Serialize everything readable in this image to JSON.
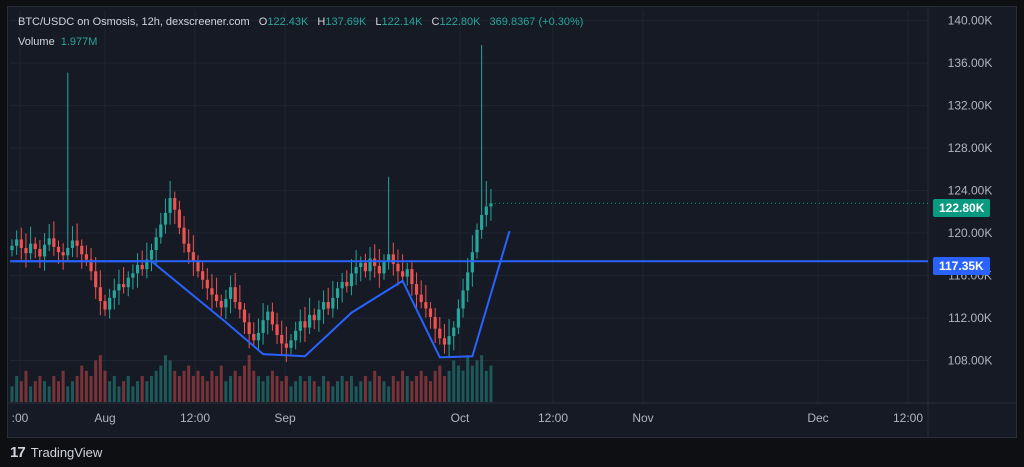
{
  "legend": {
    "symbol": "BTC/USDC on Osmosis, 12h, dexscreener.com",
    "open_label": "O",
    "open": "122.43K",
    "high_label": "H",
    "high": "137.69K",
    "low_label": "L",
    "low": "122.14K",
    "close_label": "C",
    "close": "122.80K",
    "change": "369.8367 (+0.30%)",
    "volume_label": "Volume",
    "volume": "1.977M"
  },
  "price_tags": {
    "last": "122.80K",
    "level": "117.35K"
  },
  "footer": {
    "brand": "TradingView"
  },
  "colors": {
    "up": "#26a69a",
    "down": "#ef5350",
    "level_line": "#2962ff",
    "pattern_line": "#2962ff",
    "background": "#161a25"
  },
  "chart_data": {
    "type": "candlestick",
    "title": "BTC/USDC on Osmosis, 12h, dexscreener.com",
    "y_axis": {
      "side": "right",
      "ticks": [
        "140.00K",
        "136.00K",
        "132.00K",
        "128.00K",
        "124.00K",
        "120.00K",
        "116.00K",
        "112.00K",
        "108.00K"
      ],
      "ylim": [
        104,
        141
      ]
    },
    "x_axis": {
      "ticks": [
        ":00",
        "Aug",
        "12:00",
        "Sep",
        "Oct",
        "12:00",
        "Nov",
        "Dec",
        "12:00"
      ]
    },
    "horizontal_level": 117.35,
    "last_price": 122.8,
    "candles_close": [
      118.8,
      119.4,
      118.6,
      118.1,
      119.0,
      118.5,
      117.8,
      118.9,
      119.5,
      118.7,
      118.2,
      117.9,
      118.6,
      119.3,
      118.8,
      118.0,
      117.5,
      116.4,
      114.9,
      113.6,
      112.8,
      113.9,
      114.6,
      115.2,
      114.9,
      115.8,
      116.2,
      117.0,
      116.6,
      117.5,
      118.4,
      119.6,
      120.8,
      121.9,
      123.3,
      122.2,
      120.5,
      119.0,
      118.2,
      117.3,
      116.4,
      115.6,
      114.8,
      114.2,
      113.6,
      113.0,
      113.8,
      114.9,
      113.5,
      112.8,
      111.6,
      110.5,
      109.9,
      110.6,
      111.8,
      112.6,
      111.4,
      110.4,
      109.6,
      109.2,
      109.9,
      110.8,
      111.7,
      111.1,
      112.3,
      111.8,
      112.8,
      113.5,
      112.9,
      113.9,
      114.8,
      115.4,
      115.0,
      116.2,
      116.8,
      117.2,
      116.4,
      117.6,
      116.9,
      116.2,
      117.4,
      118.0,
      117.1,
      116.4,
      115.9,
      116.6,
      115.2,
      114.2,
      113.5,
      112.9,
      112.1,
      111.0,
      110.1,
      109.5,
      110.3,
      111.1,
      112.9,
      114.6,
      116.3,
      118.2,
      120.3,
      121.7,
      122.5,
      122.8
    ],
    "pattern_line": [
      [
        0,
        117.35
      ],
      [
        30,
        117.35
      ],
      [
        46,
        111.6
      ],
      [
        54,
        108.6
      ],
      [
        63,
        108.4
      ],
      [
        73,
        112.5
      ],
      [
        84,
        115.5
      ],
      [
        92,
        108.3
      ],
      [
        99,
        108.4
      ],
      [
        107,
        120.2
      ]
    ],
    "volume_relative": [
      0.3,
      0.5,
      0.4,
      0.6,
      0.3,
      0.4,
      0.5,
      0.4,
      0.3,
      0.5,
      0.4,
      0.6,
      0.3,
      0.4,
      0.5,
      0.7,
      0.6,
      0.5,
      0.8,
      0.9,
      0.6,
      0.4,
      0.5,
      0.3,
      0.4,
      0.5,
      0.3,
      0.4,
      0.5,
      0.4,
      0.5,
      0.6,
      0.7,
      0.9,
      0.8,
      0.6,
      0.5,
      0.6,
      0.7,
      0.5,
      0.6,
      0.5,
      0.4,
      0.6,
      0.5,
      0.7,
      0.4,
      0.5,
      0.6,
      0.5,
      0.7,
      0.9,
      0.6,
      0.5,
      0.4,
      0.5,
      0.6,
      0.5,
      0.4,
      0.5,
      0.3,
      0.4,
      0.5,
      0.4,
      0.5,
      0.4,
      0.3,
      0.5,
      0.4,
      0.3,
      0.4,
      0.5,
      0.4,
      0.5,
      0.3,
      0.4,
      0.5,
      0.4,
      0.6,
      0.5,
      0.4,
      0.3,
      0.5,
      0.4,
      0.6,
      0.5,
      0.4,
      0.5,
      0.6,
      0.5,
      0.4,
      0.6,
      0.7,
      0.5,
      0.6,
      0.8,
      0.7,
      0.6,
      0.9,
      0.7,
      0.8,
      0.9,
      0.6,
      0.7
    ]
  }
}
